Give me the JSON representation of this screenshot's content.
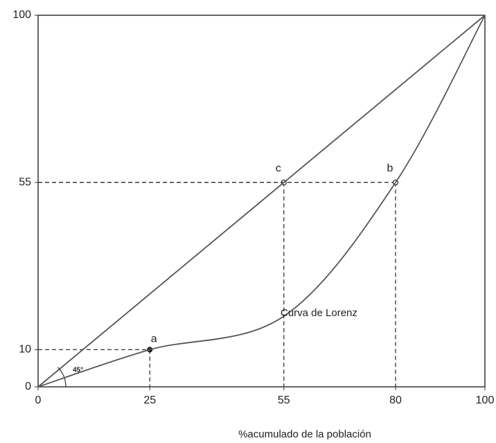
{
  "chart_data": {
    "type": "line",
    "xlabel": "%acumulado de la población",
    "xlim": [
      0,
      100
    ],
    "ylim": [
      0,
      100
    ],
    "xticks": [
      0,
      25,
      55,
      80,
      100
    ],
    "yticks": [
      0,
      10,
      55,
      100
    ],
    "grid": false,
    "series": [
      {
        "x": [
          0,
          100
        ],
        "values": [
          0,
          100
        ],
        "color": "#555555"
      },
      {
        "name": "Curva de Lorenz",
        "x": [
          0,
          25,
          55,
          80,
          100
        ],
        "values": [
          0,
          10,
          19,
          55,
          100
        ],
        "color": "#555555"
      }
    ],
    "points": [
      {
        "label": "a",
        "x": 25,
        "y": 10
      },
      {
        "label": "c",
        "x": 55,
        "y": 55
      },
      {
        "label": "b",
        "x": 80,
        "y": 55
      }
    ],
    "angle_label": "45°"
  }
}
